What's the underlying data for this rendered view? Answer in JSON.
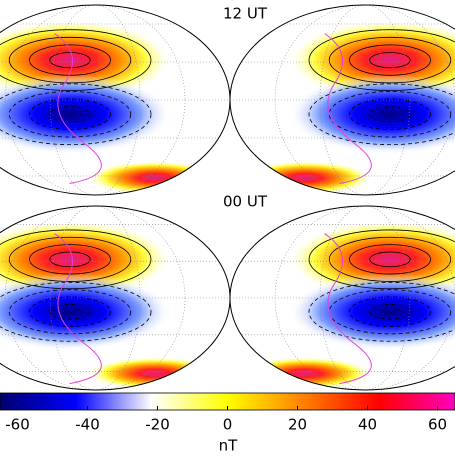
{
  "chart_data": {
    "type": "map",
    "panels": [
      {
        "title": "12 UT"
      },
      {
        "title": "00 UT"
      }
    ],
    "colorbar": {
      "label": "nT",
      "lim": [
        -65,
        65
      ],
      "ticks": [
        -60,
        -40,
        -20,
        0,
        20,
        40,
        60
      ],
      "colors": [
        "#000070",
        "#0000ff",
        "#ffffff",
        "#ffff00",
        "#ff8000",
        "#ff0000",
        "#ff00c0"
      ]
    }
  }
}
